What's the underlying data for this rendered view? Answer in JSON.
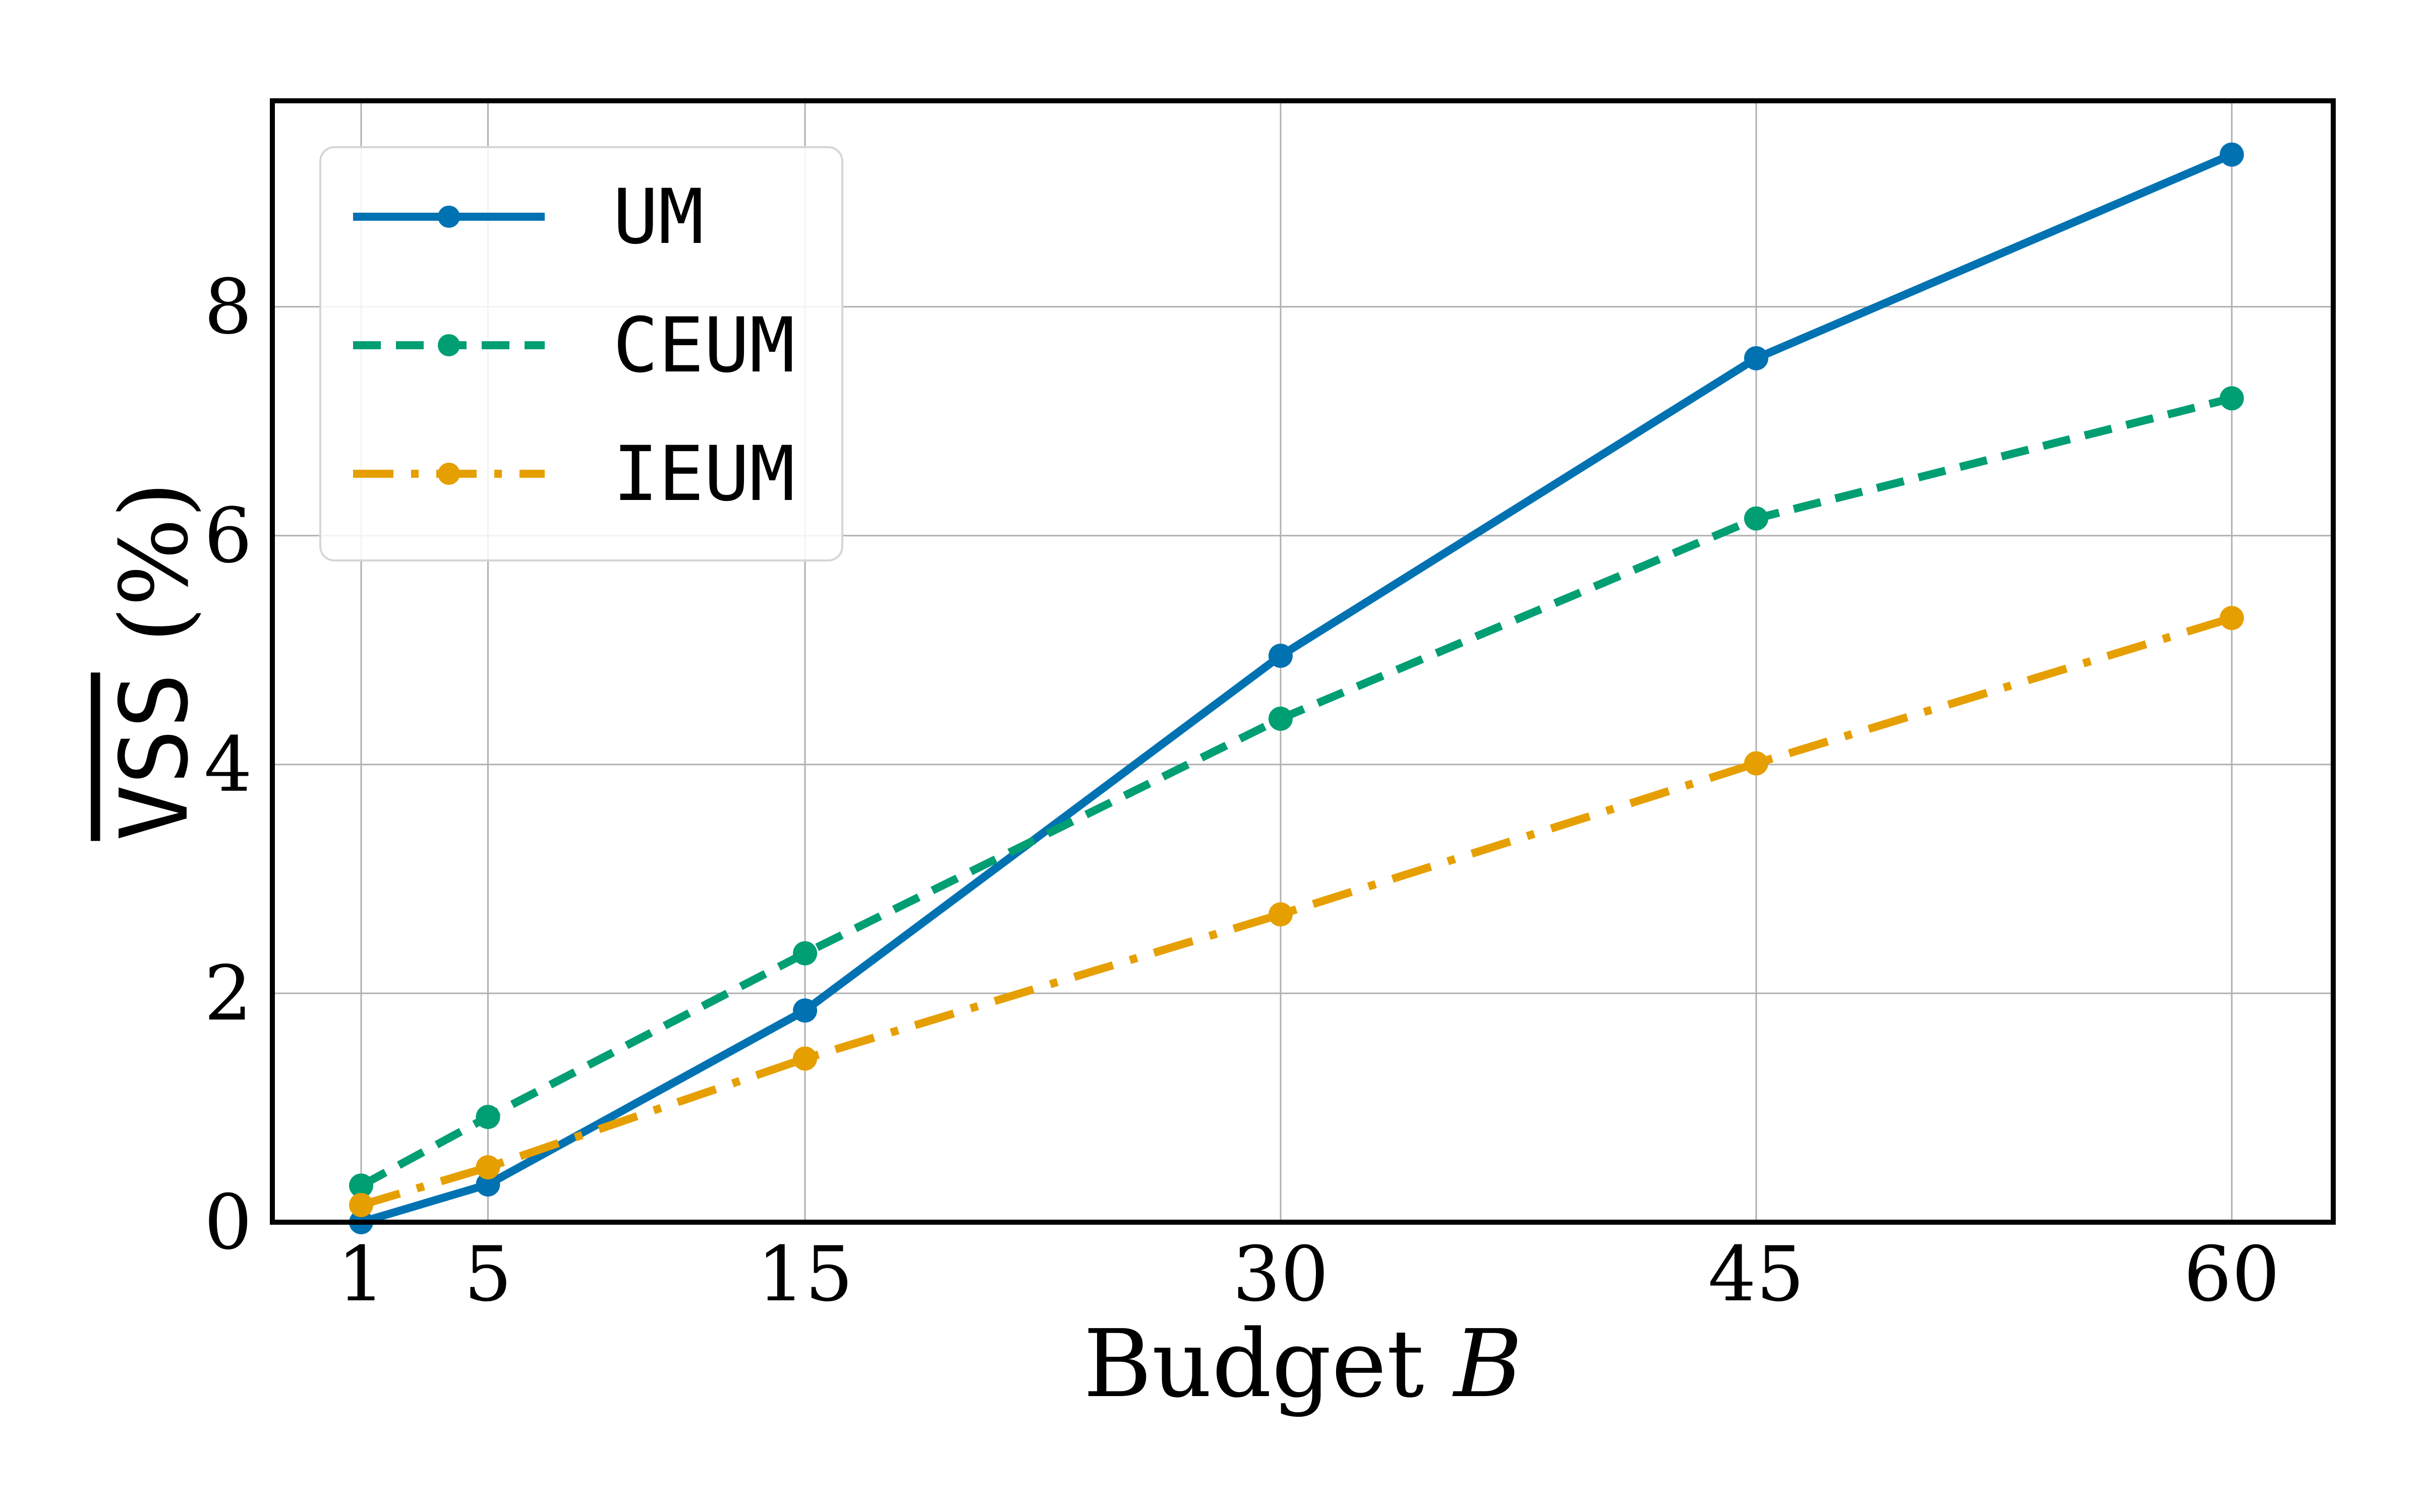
{
  "chart_data": {
    "type": "line",
    "x": [
      1,
      5,
      15,
      30,
      45,
      60
    ],
    "series": [
      {
        "name": "UM",
        "values": [
          0.0,
          0.33,
          1.85,
          4.95,
          7.55,
          9.33
        ],
        "color": "#0072B2",
        "dash": "solid"
      },
      {
        "name": "CEUM",
        "values": [
          0.32,
          0.92,
          2.35,
          4.4,
          6.15,
          7.2
        ],
        "color": "#009E73",
        "dash": "dashed"
      },
      {
        "name": "IEUM",
        "values": [
          0.15,
          0.48,
          1.43,
          2.69,
          4.01,
          5.28
        ],
        "color": "#E69F00",
        "dash": "dashdot"
      }
    ],
    "xticks": [
      "1",
      "5",
      "15",
      "30",
      "45",
      "60"
    ],
    "yticks": [
      "0",
      "2",
      "4",
      "6",
      "8"
    ],
    "xlim": [
      -1.8,
      63.2
    ],
    "ylim": [
      0,
      9.8
    ],
    "xlabel": {
      "text": "Budget ",
      "var": "B"
    },
    "ylabel": {
      "mono": "VSS",
      "suffix": " (%)"
    },
    "grid": true,
    "legend": "top-left"
  }
}
